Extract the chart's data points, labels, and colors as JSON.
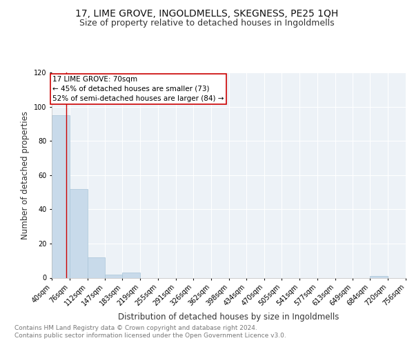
{
  "title": "17, LIME GROVE, INGOLDMELLS, SKEGNESS, PE25 1QH",
  "subtitle": "Size of property relative to detached houses in Ingoldmells",
  "xlabel": "Distribution of detached houses by size in Ingoldmells",
  "ylabel": "Number of detached properties",
  "bar_edges": [
    40,
    76,
    112,
    147,
    183,
    219,
    255,
    291,
    326,
    362,
    398,
    434,
    470,
    505,
    541,
    577,
    613,
    649,
    684,
    720,
    756
  ],
  "bar_heights": [
    95,
    52,
    12,
    2,
    3,
    0,
    0,
    0,
    0,
    0,
    0,
    0,
    0,
    0,
    0,
    0,
    0,
    0,
    1,
    0,
    0
  ],
  "bar_color": "#c8daea",
  "bar_edgecolor": "#a8c4d8",
  "property_line_x": 70,
  "property_line_color": "#cc0000",
  "annotation_line1": "17 LIME GROVE: 70sqm",
  "annotation_line2": "← 45% of detached houses are smaller (73)",
  "annotation_line3": "52% of semi-detached houses are larger (84) →",
  "annotation_box_color": "#cc0000",
  "ylim": [
    0,
    120
  ],
  "yticks": [
    0,
    20,
    40,
    60,
    80,
    100,
    120
  ],
  "tick_labels": [
    "40sqm",
    "76sqm",
    "112sqm",
    "147sqm",
    "183sqm",
    "219sqm",
    "255sqm",
    "291sqm",
    "326sqm",
    "362sqm",
    "398sqm",
    "434sqm",
    "470sqm",
    "505sqm",
    "541sqm",
    "577sqm",
    "613sqm",
    "649sqm",
    "684sqm",
    "720sqm",
    "756sqm"
  ],
  "footer_line1": "Contains HM Land Registry data © Crown copyright and database right 2024.",
  "footer_line2": "Contains public sector information licensed under the Open Government Licence v3.0.",
  "background_color": "#edf2f7",
  "grid_color": "#ffffff",
  "title_fontsize": 10,
  "subtitle_fontsize": 9,
  "axis_label_fontsize": 8.5,
  "tick_fontsize": 7,
  "footer_fontsize": 6.5,
  "annotation_fontsize": 7.5
}
